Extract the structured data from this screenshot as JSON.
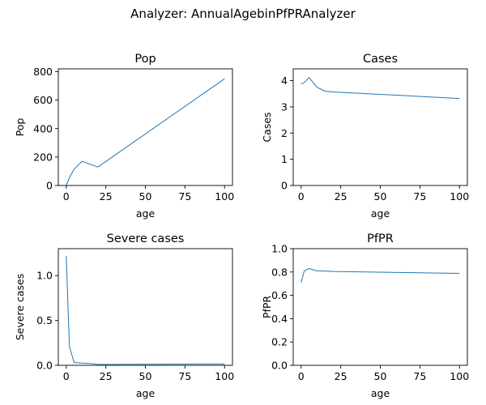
{
  "suptitle": "Analyzer: AnnualAgebinPfPRAnalyzer",
  "chart_data": [
    {
      "type": "line",
      "title": "Pop",
      "xlabel": "age",
      "ylabel": "Pop",
      "xlim": [
        -5,
        105
      ],
      "ylim": [
        0,
        820
      ],
      "xticks": [
        0,
        25,
        50,
        75,
        100
      ],
      "yticks": [
        0,
        200,
        400,
        600,
        800
      ],
      "xtick_labels": [
        "0",
        "25",
        "50",
        "75",
        "100"
      ],
      "ytick_labels": [
        "0",
        "200",
        "400",
        "600",
        "800"
      ],
      "x": [
        0,
        2,
        5,
        10,
        15,
        20,
        100
      ],
      "y": [
        0,
        55,
        115,
        170,
        150,
        130,
        750
      ],
      "color": "#1f77b4"
    },
    {
      "type": "line",
      "title": "Cases",
      "xlabel": "age",
      "ylabel": "Cases",
      "xlim": [
        -5,
        105
      ],
      "ylim": [
        0,
        4.45
      ],
      "xticks": [
        0,
        25,
        50,
        75,
        100
      ],
      "yticks": [
        0,
        1,
        2,
        3,
        4
      ],
      "xtick_labels": [
        "0",
        "25",
        "50",
        "75",
        "100"
      ],
      "ytick_labels": [
        "0",
        "1",
        "2",
        "3",
        "4"
      ],
      "x": [
        0,
        2,
        5,
        10,
        15,
        20,
        100
      ],
      "y": [
        3.87,
        3.93,
        4.12,
        3.75,
        3.6,
        3.57,
        3.32
      ],
      "color": "#1f77b4"
    },
    {
      "type": "line",
      "title": "Severe cases",
      "xlabel": "age",
      "ylabel": "Severe cases",
      "xlim": [
        -5,
        105
      ],
      "ylim": [
        0,
        1.3
      ],
      "xticks": [
        0,
        25,
        50,
        75,
        100
      ],
      "yticks": [
        0,
        0.5,
        1.0
      ],
      "xtick_labels": [
        "0",
        "25",
        "50",
        "75",
        "100"
      ],
      "ytick_labels": [
        "0.0",
        "0.5",
        "1.0"
      ],
      "x": [
        0,
        2,
        5,
        10,
        15,
        20,
        100
      ],
      "y": [
        1.22,
        0.21,
        0.03,
        0.025,
        0.02,
        0.01,
        0.015
      ],
      "color": "#1f77b4"
    },
    {
      "type": "line",
      "title": "PfPR",
      "xlabel": "age",
      "ylabel": "PfPR",
      "xlim": [
        -5,
        105
      ],
      "ylim": [
        0,
        1.0
      ],
      "xticks": [
        0,
        25,
        50,
        75,
        100
      ],
      "yticks": [
        0,
        0.2,
        0.4,
        0.6,
        0.8,
        1.0
      ],
      "xtick_labels": [
        "0",
        "25",
        "50",
        "75",
        "100"
      ],
      "ytick_labels": [
        "0.0",
        "0.2",
        "0.4",
        "0.6",
        "0.8",
        "1.0"
      ],
      "x": [
        0,
        2,
        5,
        10,
        15,
        20,
        100
      ],
      "y": [
        0.71,
        0.81,
        0.83,
        0.81,
        0.808,
        0.805,
        0.788
      ],
      "color": "#1f77b4"
    }
  ]
}
